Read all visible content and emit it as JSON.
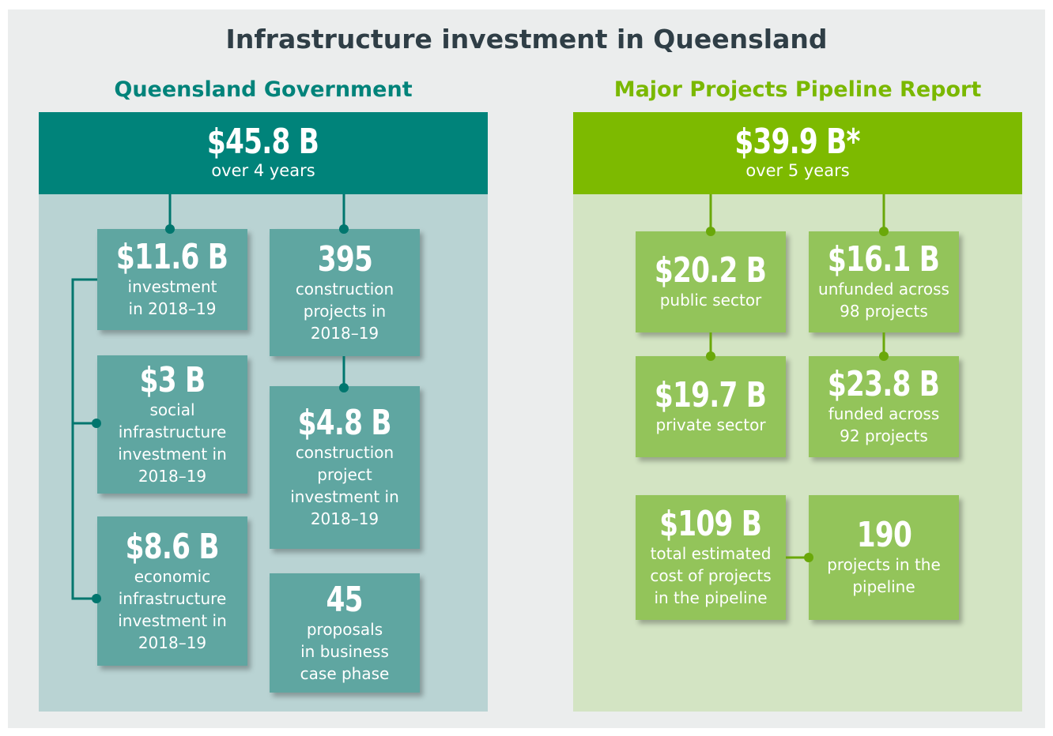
{
  "title": "Infrastructure investment in Queensland",
  "left": {
    "heading": "Queensland Government",
    "header": {
      "value": "$45.8 B",
      "subtitle": "over 4 years"
    },
    "boxes": [
      {
        "value": "$11.6 B",
        "lines": [
          "investment",
          "in 2018–19"
        ]
      },
      {
        "value": "395",
        "lines": [
          "construction",
          "projects in",
          "2018–19"
        ]
      },
      {
        "value": "$3 B",
        "lines": [
          "social",
          "infrastructure",
          "investment in",
          "2018–19"
        ]
      },
      {
        "value": "$4.8 B",
        "lines": [
          "construction",
          "project",
          "investment in",
          "2018–19"
        ]
      },
      {
        "value": "$8.6 B",
        "lines": [
          "economic",
          "infrastructure",
          "investment in",
          "2018–19"
        ]
      },
      {
        "value": "45",
        "lines": [
          "proposals",
          "in business",
          "case phase"
        ]
      }
    ]
  },
  "right": {
    "heading": "Major Projects Pipeline Report",
    "header": {
      "value": "$39.9 B*",
      "subtitle": "over 5 years"
    },
    "boxes": [
      {
        "value": "$20.2 B",
        "lines": [
          "public sector"
        ]
      },
      {
        "value": "$16.1 B",
        "lines": [
          "unfunded across",
          "98 projects"
        ]
      },
      {
        "value": "$19.7 B",
        "lines": [
          "private sector"
        ]
      },
      {
        "value": "$23.8 B",
        "lines": [
          "funded across",
          "92 projects"
        ]
      },
      {
        "value": "$109 B",
        "lines": [
          "total estimated",
          "cost of projects",
          "in the pipeline"
        ]
      },
      {
        "value": "190",
        "lines": [
          "projects in the",
          "pipeline"
        ]
      }
    ]
  }
}
